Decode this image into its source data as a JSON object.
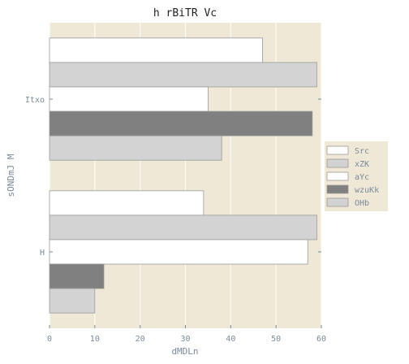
{
  "chart_data": {
    "type": "bar",
    "orientation": "horizontal",
    "title": "h rBiTR Vc",
    "xlabel": "dMDLn",
    "ylabel": "sONDmJ M",
    "categories": [
      "H",
      "Itxo"
    ],
    "xlim": [
      0,
      60
    ],
    "xticks": [
      0,
      10,
      20,
      30,
      40,
      50,
      60
    ],
    "grid": true,
    "legend_position": "right",
    "series": [
      {
        "name": "Src",
        "color": "#ffffff",
        "values": [
          34,
          47
        ]
      },
      {
        "name": "xZK",
        "color": "#d3d3d3",
        "values": [
          59,
          59
        ]
      },
      {
        "name": "aYc",
        "color": "#ffffff",
        "values": [
          57,
          35
        ]
      },
      {
        "name": "wzuKk",
        "color": "#808080",
        "values": [
          12,
          58
        ]
      },
      {
        "name": "OHb",
        "color": "#d3d3d3",
        "values": [
          10,
          38
        ]
      }
    ],
    "colors": {
      "plot_background": "#efe8d6",
      "grid": "#ffffff",
      "text": "#7a8a9a",
      "title": "#222222",
      "bar_edge": "#9a9a9a"
    }
  }
}
